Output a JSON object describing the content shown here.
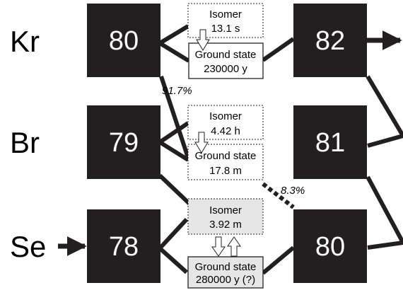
{
  "elements": {
    "kr": "Kr",
    "br": "Br",
    "se": "Se"
  },
  "nuclei": {
    "kr80": "80",
    "kr82": "82",
    "br79": "79",
    "br81": "81",
    "se78": "78",
    "se80": "80"
  },
  "states": {
    "kr_isomer": {
      "label": "Isomer",
      "halflife": "13.1 s"
    },
    "kr_ground": {
      "label": "Ground state",
      "halflife": "230000 y"
    },
    "br_isomer": {
      "label": "Isomer",
      "halflife": "4.42 h"
    },
    "br_ground": {
      "label": "Ground state",
      "halflife": "17.8 m"
    },
    "se_isomer": {
      "label": "Isomer",
      "halflife": "3.92 m"
    },
    "se_ground": {
      "label": "Ground state",
      "halflife": "280000 y (?)"
    }
  },
  "branches": {
    "kr_to_br": "91.7%",
    "br_to_se": "8.3%"
  },
  "colors": {
    "box": "#231f20",
    "se_state_fill": "#e6e6e6"
  }
}
